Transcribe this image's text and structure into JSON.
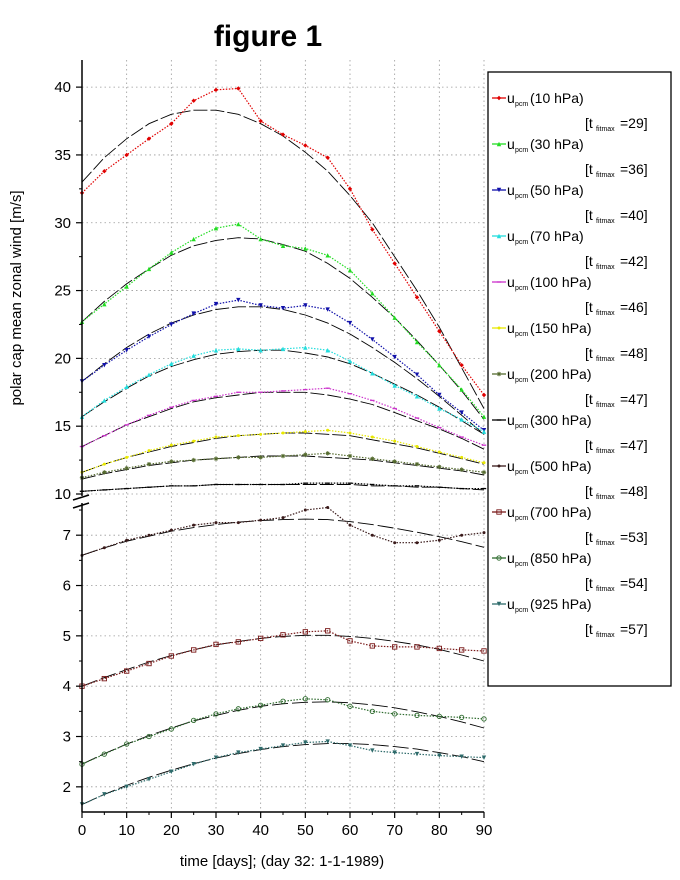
{
  "chart_data": {
    "type": "line",
    "title": "figure 1",
    "xlabel": "time [days]; (day 32: 1-1-1989)",
    "ylabel": "polar cap mean zonal wind [m/s]",
    "xlim": [
      0,
      90
    ],
    "x_ticks": [
      0,
      10,
      20,
      30,
      40,
      50,
      60,
      70,
      80,
      90
    ],
    "y_upper_range": [
      10,
      42
    ],
    "y_upper_ticks": [
      10,
      15,
      20,
      25,
      30,
      35,
      40
    ],
    "y_lower_range": [
      1.5,
      7.6
    ],
    "y_lower_ticks": [
      2,
      3,
      4,
      5,
      6,
      7
    ],
    "axis_break": "between 7 and 10",
    "grid": true,
    "legend_position": "right",
    "x": [
      0,
      5,
      10,
      15,
      20,
      25,
      30,
      35,
      40,
      45,
      50,
      55,
      60,
      65,
      70,
      75,
      80,
      85,
      90
    ],
    "series": [
      {
        "label_main": "u",
        "label_sub": "pcm",
        "label_level": "(10 hPa)",
        "tmax_sub": "fitmax",
        "tmax": "[t_fitmax=29]",
        "tmax_value": "=29]",
        "color": "#e00000",
        "marker": "diamond",
        "panel": "upper",
        "values": [
          32.2,
          33.8,
          35.0,
          36.2,
          37.3,
          39.0,
          39.8,
          39.9,
          37.5,
          36.5,
          35.7,
          34.8,
          32.5,
          29.5,
          27.0,
          24.5,
          22.0,
          19.5,
          17.3
        ],
        "fit": [
          33.0,
          34.8,
          36.2,
          37.3,
          38.0,
          38.3,
          38.3,
          38.0,
          37.3,
          36.4,
          35.2,
          33.8,
          32.0,
          30.0,
          27.5,
          25.0,
          22.3,
          19.3,
          16.3
        ]
      },
      {
        "label_main": "u",
        "label_sub": "pcm",
        "label_level": "(30 hPa)",
        "tmax_sub": "fitmax",
        "tmax": "[t_fitmax=36]",
        "tmax_value": "=36]",
        "color": "#22dd22",
        "marker": "triangle-up",
        "panel": "upper",
        "values": [
          22.7,
          24.0,
          25.3,
          26.6,
          27.8,
          28.8,
          29.6,
          29.9,
          28.8,
          28.3,
          28.1,
          27.6,
          26.5,
          24.8,
          23.0,
          21.2,
          19.5,
          17.7,
          15.7
        ],
        "fit": [
          22.7,
          24.2,
          25.5,
          26.6,
          27.6,
          28.3,
          28.7,
          28.9,
          28.8,
          28.4,
          27.9,
          27.0,
          25.9,
          24.5,
          23.0,
          21.3,
          19.5,
          17.6,
          15.5
        ]
      },
      {
        "label_main": "u",
        "label_sub": "pcm",
        "label_level": "(50 hPa)",
        "tmax_sub": "fitmax",
        "tmax": "[t_fitmax=40]",
        "tmax_value": "=40]",
        "color": "#1010aa",
        "marker": "triangle-down",
        "panel": "upper",
        "values": [
          18.3,
          19.5,
          20.6,
          21.6,
          22.5,
          23.3,
          24.0,
          24.3,
          23.9,
          23.7,
          23.9,
          23.6,
          22.6,
          21.4,
          20.1,
          18.8,
          17.3,
          16.0,
          14.7
        ],
        "fit": [
          18.3,
          19.6,
          20.8,
          21.8,
          22.6,
          23.2,
          23.6,
          23.8,
          23.8,
          23.6,
          23.2,
          22.6,
          21.8,
          20.8,
          19.7,
          18.5,
          17.2,
          15.8,
          14.4
        ]
      },
      {
        "label_main": "u",
        "label_sub": "pcm",
        "label_level": "(70 hPa)",
        "tmax_sub": "fitmax",
        "tmax": "[t_fitmax=42]",
        "tmax_value": "=42]",
        "color": "#22dddd",
        "marker": "triangle-up",
        "panel": "upper",
        "values": [
          15.7,
          16.9,
          17.9,
          18.8,
          19.6,
          20.2,
          20.6,
          20.7,
          20.6,
          20.7,
          20.8,
          20.6,
          19.8,
          18.9,
          18.0,
          17.2,
          16.3,
          15.5,
          14.6
        ],
        "fit": [
          15.7,
          16.8,
          17.8,
          18.7,
          19.4,
          19.9,
          20.3,
          20.5,
          20.6,
          20.6,
          20.4,
          20.1,
          19.6,
          18.9,
          18.1,
          17.3,
          16.4,
          15.4,
          14.4
        ]
      },
      {
        "label_main": "u",
        "label_sub": "pcm",
        "label_level": "(100 hPa)",
        "tmax_sub": "fitmax",
        "tmax": "[t_fitmax=46]",
        "tmax_value": "=46]",
        "color": "#cc33cc",
        "marker": "dash",
        "panel": "upper",
        "values": [
          13.5,
          14.3,
          15.1,
          15.8,
          16.4,
          16.9,
          17.2,
          17.5,
          17.5,
          17.6,
          17.7,
          17.8,
          17.4,
          16.9,
          16.3,
          15.6,
          14.9,
          14.2,
          13.6
        ],
        "fit": [
          13.5,
          14.3,
          15.1,
          15.7,
          16.3,
          16.8,
          17.1,
          17.3,
          17.5,
          17.5,
          17.5,
          17.3,
          17.0,
          16.6,
          16.0,
          15.4,
          14.8,
          14.1,
          13.3
        ]
      },
      {
        "label_main": "u",
        "label_sub": "pcm",
        "label_level": "(150 hPa)",
        "tmax_sub": "fitmax",
        "tmax": "[t_fitmax=48]",
        "tmax_value": "=48]",
        "color": "#e8e800",
        "marker": "dot",
        "panel": "upper",
        "values": [
          11.6,
          12.2,
          12.7,
          13.2,
          13.6,
          13.9,
          14.2,
          14.3,
          14.4,
          14.5,
          14.6,
          14.7,
          14.5,
          14.2,
          13.9,
          13.5,
          13.1,
          12.7,
          12.3
        ],
        "fit": [
          11.6,
          12.2,
          12.7,
          13.1,
          13.5,
          13.8,
          14.1,
          14.3,
          14.4,
          14.5,
          14.5,
          14.4,
          14.3,
          14.0,
          13.7,
          13.4,
          13.0,
          12.6,
          12.2
        ]
      },
      {
        "label_main": "u",
        "label_sub": "pcm",
        "label_level": "(200 hPa)",
        "tmax_sub": "fitmax",
        "tmax": "[t_fitmax=47]",
        "tmax_value": "=47]",
        "color": "#556b2f",
        "marker": "star",
        "panel": "upper",
        "values": [
          11.2,
          11.6,
          11.9,
          12.2,
          12.4,
          12.5,
          12.6,
          12.7,
          12.7,
          12.8,
          12.9,
          13.0,
          12.8,
          12.6,
          12.4,
          12.2,
          12.0,
          11.8,
          11.6
        ],
        "fit": [
          11.1,
          11.5,
          11.8,
          12.1,
          12.3,
          12.5,
          12.6,
          12.7,
          12.8,
          12.8,
          12.8,
          12.7,
          12.6,
          12.5,
          12.3,
          12.1,
          11.9,
          11.7,
          11.4
        ]
      },
      {
        "label_main": "u",
        "label_sub": "pcm",
        "label_level": "(300 hPa)",
        "tmax_sub": "fitmax",
        "tmax": "[t_fitmax=47]",
        "tmax_value": "=47]",
        "color": "#000000",
        "marker": "dash",
        "panel": "upper",
        "values": [
          10.2,
          10.3,
          10.4,
          10.5,
          10.6,
          10.6,
          10.7,
          10.7,
          10.7,
          10.7,
          10.8,
          10.8,
          10.8,
          10.7,
          10.6,
          10.6,
          10.5,
          10.4,
          10.4
        ],
        "fit": [
          10.2,
          10.3,
          10.4,
          10.5,
          10.6,
          10.6,
          10.7,
          10.7,
          10.7,
          10.7,
          10.7,
          10.7,
          10.7,
          10.6,
          10.6,
          10.5,
          10.5,
          10.4,
          10.3
        ]
      },
      {
        "label_main": "u",
        "label_sub": "pcm",
        "label_level": "(500 hPa)",
        "tmax_sub": "fitmax",
        "tmax": "[t_fitmax=48]",
        "tmax_value": "=48]",
        "color": "#3a1a1a",
        "marker": "dot",
        "panel": "lower",
        "values": [
          6.6,
          6.75,
          6.9,
          7.0,
          7.1,
          7.2,
          7.25,
          7.25,
          7.3,
          7.35,
          7.5,
          7.55,
          7.2,
          7.0,
          6.85,
          6.85,
          6.9,
          7.0,
          7.05
        ],
        "fit": [
          6.6,
          6.75,
          6.88,
          6.98,
          7.08,
          7.15,
          7.21,
          7.26,
          7.29,
          7.31,
          7.32,
          7.31,
          7.27,
          7.21,
          7.14,
          7.06,
          6.97,
          6.87,
          6.76
        ]
      },
      {
        "label_main": "u",
        "label_sub": "pcm",
        "label_level": "(700 hPa)",
        "tmax_sub": "fitmax",
        "tmax": "[t_fitmax=53]",
        "tmax_value": "=53]",
        "color": "#7a1a1a",
        "marker": "square",
        "panel": "lower",
        "values": [
          4.0,
          4.15,
          4.3,
          4.45,
          4.6,
          4.72,
          4.83,
          4.88,
          4.95,
          5.02,
          5.08,
          5.1,
          4.9,
          4.8,
          4.78,
          4.78,
          4.75,
          4.72,
          4.7
        ],
        "fit": [
          4.0,
          4.17,
          4.33,
          4.48,
          4.61,
          4.72,
          4.82,
          4.89,
          4.95,
          4.99,
          5.01,
          5.01,
          4.99,
          4.95,
          4.89,
          4.82,
          4.73,
          4.62,
          4.5
        ]
      },
      {
        "label_main": "u",
        "label_sub": "pcm",
        "label_level": "(850 hPa)",
        "tmax_sub": "fitmax",
        "tmax": "[t_fitmax=54]",
        "tmax_value": "=54]",
        "color": "#2e6b2e",
        "marker": "circle",
        "panel": "lower",
        "values": [
          2.45,
          2.65,
          2.85,
          3.0,
          3.15,
          3.32,
          3.45,
          3.55,
          3.62,
          3.7,
          3.75,
          3.73,
          3.6,
          3.5,
          3.45,
          3.42,
          3.4,
          3.38,
          3.35
        ],
        "fit": [
          2.45,
          2.66,
          2.85,
          3.02,
          3.17,
          3.31,
          3.42,
          3.52,
          3.6,
          3.65,
          3.68,
          3.69,
          3.67,
          3.63,
          3.57,
          3.49,
          3.4,
          3.29,
          3.17
        ]
      },
      {
        "label_main": "u",
        "label_sub": "pcm",
        "label_level": "(925 hPa)",
        "tmax_sub": "fitmax",
        "tmax": "[t_fitmax=57]",
        "tmax_value": "=57]",
        "color": "#2e6b6b",
        "marker": "triangle-down",
        "panel": "lower",
        "values": [
          1.65,
          1.85,
          2.0,
          2.15,
          2.3,
          2.45,
          2.58,
          2.68,
          2.75,
          2.82,
          2.88,
          2.9,
          2.82,
          2.72,
          2.68,
          2.65,
          2.62,
          2.6,
          2.58
        ],
        "fit": [
          1.65,
          1.85,
          2.03,
          2.19,
          2.33,
          2.46,
          2.57,
          2.66,
          2.74,
          2.8,
          2.84,
          2.86,
          2.86,
          2.84,
          2.8,
          2.75,
          2.68,
          2.6,
          2.5
        ]
      }
    ]
  }
}
